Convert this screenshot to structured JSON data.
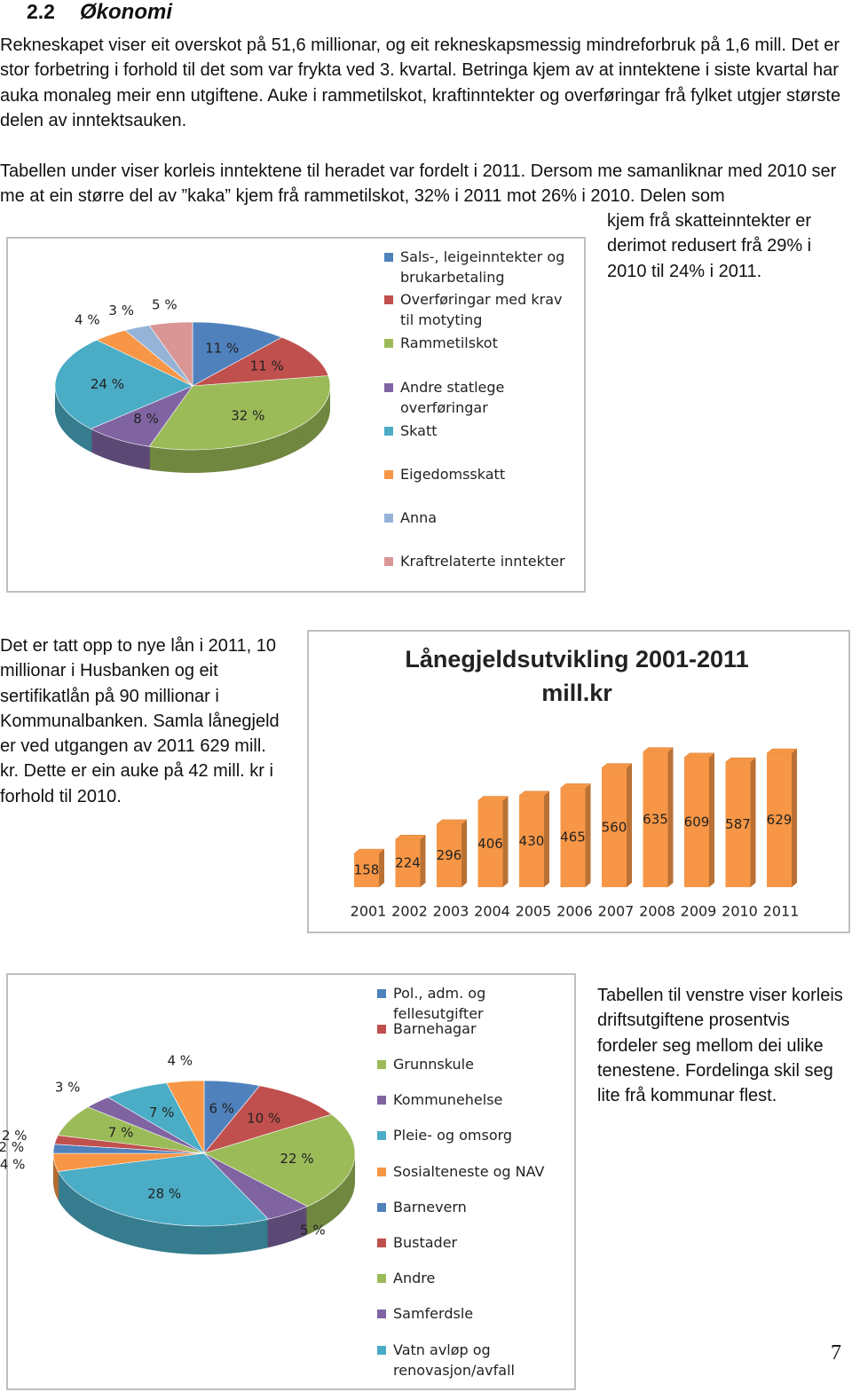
{
  "heading": {
    "number": "2.2",
    "title": "Økonomi"
  },
  "paragraphs": [
    "Rekneskapet viser eit overskot på 51,6 millionar, og eit rekneskapsmessig mindreforbruk på 1,6 mill. Det er stor forbetring i forhold til det som var frykta ved 3. kvartal. Betringa kjem av at inntektene i siste kvartal har auka monaleg meir enn utgiftene. Auke i rammetilskot, kraftinntekter og overføringar frå fylket utgjer største delen av inntektsauken.",
    "Tabellen under viser korleis inntektene til heradet var fordelt i 2011. Dersom me samanliknar med 2010 ser me at ein større del av ”kaka” kjem frå rammetilskot, 32% i 2011 mot 26% i 2010. Delen som",
    "kjem frå skatteinntekter er derimot redusert frå 29% i 2010 til 24% i 2011.",
    "Det er tatt opp to nye lån i 2011, 10 millionar i Husbanken og eit sertifikatlån på 90 millionar i Kommunalbanken. Samla lånegjeld er ved utgangen av 2011 629 mill. kr. Dette er ein auke på 42 mill. kr i forhold til 2010.",
    "Tabellen til venstre viser korleis driftsutgiftene prosentvis fordeler seg mellom dei ulike tenestene. Fordelinga skil seg lite frå kommunar flest."
  ],
  "chart_data": [
    {
      "type": "pie",
      "categories": [
        "Sals-, leigeinntekter og brukarbetaling",
        "Overføringar med krav til motyting",
        "Rammetilskot",
        "Andre statlege overføringar",
        "Skatt",
        "Eigedomsskatt",
        "Anna",
        "Kraftrelaterte inntekter"
      ],
      "values": [
        11,
        11,
        32,
        8,
        24,
        4,
        3,
        5
      ],
      "value_labels": [
        "11 %",
        "11 %",
        "32 %",
        "8 %",
        "24 %",
        "4 %",
        "3 %",
        "5 %"
      ],
      "colors": [
        "#4f81bd",
        "#c0504d",
        "#9bbb59",
        "#8064a2",
        "#4bacc6",
        "#f79646",
        "#95b3d7",
        "#d99694"
      ]
    },
    {
      "type": "bar",
      "title": "Lånegjeldsutvikling 2001-2011 mill.kr",
      "categories": [
        "2001",
        "2002",
        "2003",
        "2004",
        "2005",
        "2006",
        "2007",
        "2008",
        "2009",
        "2010",
        "2011"
      ],
      "values": [
        158,
        224,
        296,
        406,
        430,
        465,
        560,
        635,
        609,
        587,
        629
      ],
      "color": "#f79646"
    },
    {
      "type": "pie",
      "categories": [
        "Pol., adm. og fellesutgifter",
        "Barnehagar",
        "Grunnskule",
        "Kommunehelse",
        "Pleie- og omsorg",
        "Sosialteneste og NAV",
        "Barnevern",
        "Bustader",
        "Andre",
        "Samferdsle",
        "Vatn avløp og renovasjon/avfall",
        null
      ],
      "values": [
        6,
        10,
        22,
        5,
        28,
        4,
        2,
        2,
        7,
        3,
        7,
        4
      ],
      "value_labels": [
        "6 %",
        "10 %",
        "22 %",
        "5 %",
        "28 %",
        "4 %",
        "2 %",
        "2 %",
        "7 %",
        "3 %",
        "7 %",
        "4 %"
      ],
      "colors": [
        "#4f81bd",
        "#c0504d",
        "#9bbb59",
        "#8064a2",
        "#4bacc6",
        "#f79646",
        "#4f81bd",
        "#c0504d",
        "#9bbb59",
        "#8064a2",
        "#4bacc6",
        "#f79646"
      ]
    }
  ],
  "page_number": "7"
}
